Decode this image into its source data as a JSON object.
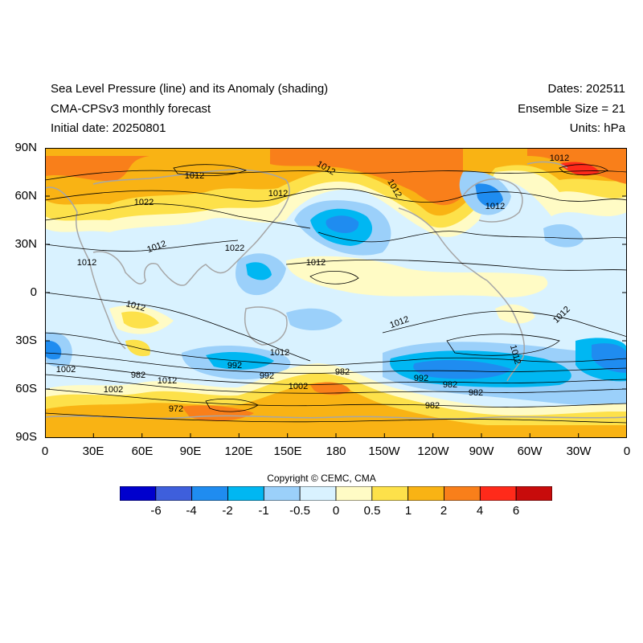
{
  "header": {
    "title_line1": "Sea Level Pressure (line) and its Anomaly (shading)",
    "title_line2": "CMA-CPSv3 monthly forecast",
    "title_line3": "Initial date: 20250801",
    "dates": "Dates: 202511",
    "ensemble": "Ensemble Size = 21",
    "units": "Units: hPa"
  },
  "axes": {
    "lat_labels": [
      "90N",
      "60N",
      "30N",
      "0",
      "30S",
      "60S",
      "90S"
    ],
    "lon_labels": [
      "0",
      "30E",
      "60E",
      "90E",
      "120E",
      "150E",
      "180",
      "150W",
      "120W",
      "90W",
      "60W",
      "30W",
      "0"
    ]
  },
  "contour_labels": [
    "1012",
    "1012",
    "1012",
    "1012",
    "1022",
    "1012",
    "1022",
    "1012",
    "1012",
    "1012",
    "1012",
    "1012",
    "1012",
    "1012",
    "1012",
    "1012",
    "1002",
    "992",
    "982",
    "1012",
    "1002",
    "982",
    "992",
    "1002",
    "992",
    "982",
    "982",
    "972",
    "982"
  ],
  "copyright": "Copyright © CEMC, CMA",
  "colorbar": {
    "colors": [
      "#0000cd",
      "#3e5fdc",
      "#1f8cf0",
      "#00b7f2",
      "#9bd0fa",
      "#d9f2ff",
      "#fffbc5",
      "#fde14a",
      "#f9b314",
      "#f97f1a",
      "#ff2a1a",
      "#c80b0b"
    ],
    "labels": [
      "-6",
      "-4",
      "-2",
      "-1",
      "-0.5",
      "0",
      "0.5",
      "1",
      "2",
      "4",
      "6"
    ]
  }
}
